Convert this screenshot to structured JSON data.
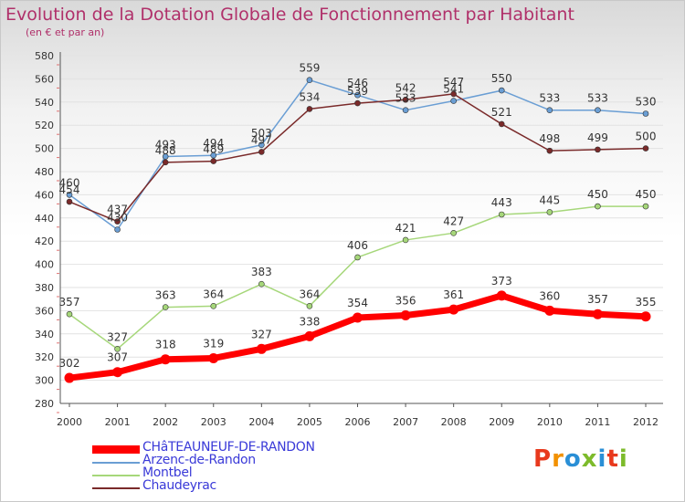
{
  "header": {
    "title": "Evolution de la Dotation Globale de Fonctionnement par Habitant",
    "subtitle": "(en € et par an)"
  },
  "logo": {
    "text": "Proxiti",
    "letter_colors": [
      "#e8391d",
      "#f29100",
      "#2a8fd6",
      "#7dbb2b",
      "#2a8fd6",
      "#e8391d",
      "#7dbb2b"
    ]
  },
  "chart_data": {
    "type": "line",
    "title": "Evolution de la Dotation Globale de Fonctionnement par Habitant",
    "subtitle": "(en € et par an)",
    "xlabel": "",
    "ylabel": "",
    "x": [
      "2000",
      "2001",
      "2002",
      "2003",
      "2004",
      "2005",
      "2006",
      "2007",
      "2008",
      "2009",
      "2010",
      "2011",
      "2012"
    ],
    "ylim": [
      280,
      580
    ],
    "yticks": [
      280,
      300,
      320,
      340,
      360,
      380,
      400,
      420,
      440,
      460,
      480,
      500,
      520,
      540,
      560,
      580
    ],
    "grid": "horizontal",
    "legend_position": "bottom-left",
    "series": [
      {
        "name": "Arzenc-de-Randon",
        "color": "#6a9ed4",
        "values": [
          460,
          430,
          493,
          494,
          503,
          559,
          546,
          533,
          541,
          550,
          533,
          533,
          530
        ],
        "labels": [
          "460",
          "430",
          "493",
          "494",
          "503",
          "559",
          "546",
          "533",
          "541",
          "550",
          "533",
          "533",
          "530"
        ]
      },
      {
        "name": "Montbel",
        "color": "#a6d77a",
        "values": [
          357,
          327,
          363,
          364,
          383,
          364,
          406,
          421,
          427,
          443,
          445,
          450,
          450
        ],
        "labels": [
          "357",
          "327",
          "363",
          "364",
          "383",
          "364",
          "406",
          "421",
          "427",
          "443",
          "445",
          "450",
          "450"
        ]
      },
      {
        "name": "Chaudeyrac",
        "color": "#7a2a2a",
        "values": [
          454,
          437,
          488,
          489,
          497,
          534,
          539,
          542,
          547,
          521,
          498,
          499,
          500
        ],
        "labels": [
          "454",
          "437",
          "488",
          "489",
          "497",
          "534",
          "539",
          "542",
          "547",
          "521",
          "498",
          "499",
          "500"
        ]
      },
      {
        "name": "CHâTEAUNEUF-DE-RANDON",
        "color": "#ff0000",
        "values": [
          302,
          307,
          318,
          319,
          327,
          338,
          354,
          356,
          361,
          373,
          360,
          357,
          355
        ],
        "labels": [
          "302",
          "307",
          "318",
          "319",
          "327",
          "338",
          "354",
          "356",
          "361",
          "373",
          "360",
          "357",
          "355"
        ]
      }
    ],
    "legend": [
      "CHâTEAUNEUF-DE-RANDON",
      "Arzenc-de-Randon",
      "Montbel",
      "Chaudeyrac"
    ]
  }
}
